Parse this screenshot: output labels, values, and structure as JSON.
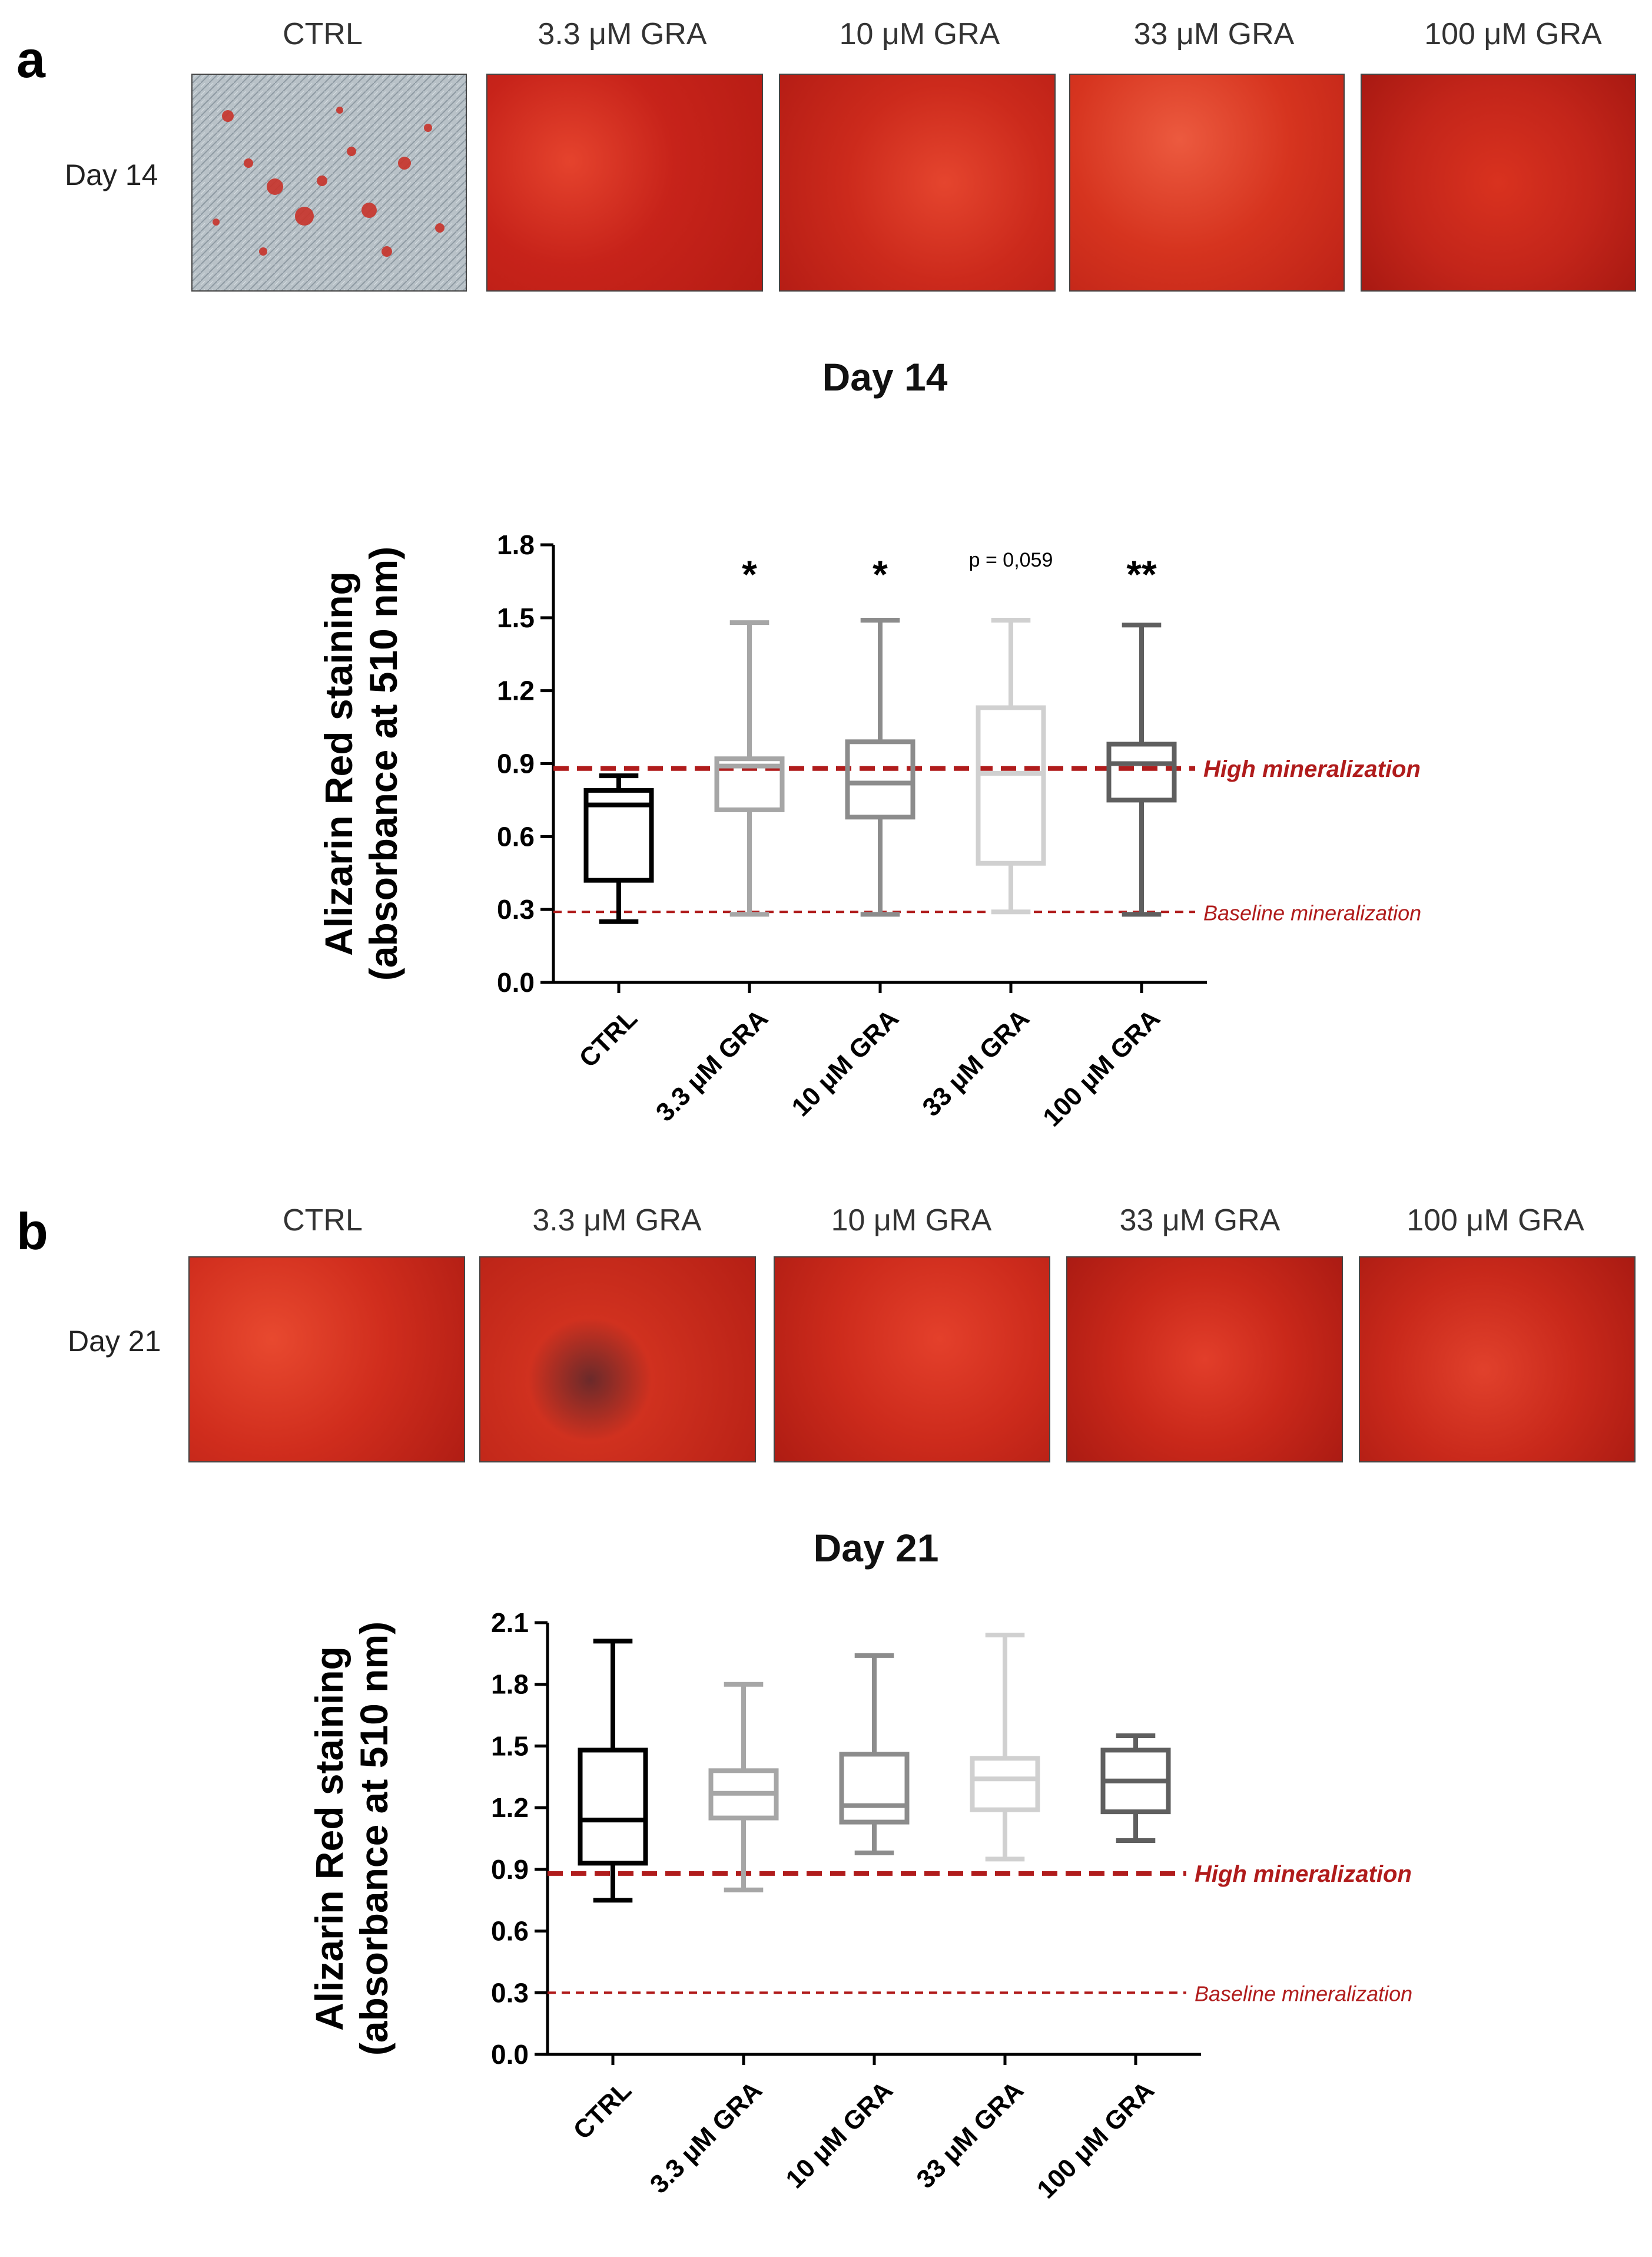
{
  "panel_a": {
    "letter": "a",
    "day_label": "Day 14",
    "images": [
      {
        "label": "CTRL",
        "staining": "sparse"
      },
      {
        "label": "3.3 μM GRA",
        "staining": "dense"
      },
      {
        "label": "10 μM GRA",
        "staining": "dense"
      },
      {
        "label": "33 μM GRA",
        "staining": "dense"
      },
      {
        "label": "100 μM GRA",
        "staining": "dense"
      }
    ]
  },
  "panel_b": {
    "letter": "b",
    "day_label": "Day 21",
    "images": [
      {
        "label": "CTRL",
        "staining": "dense"
      },
      {
        "label": "3.3 μM GRA",
        "staining": "dense"
      },
      {
        "label": "10 μM GRA",
        "staining": "dense"
      },
      {
        "label": "33 μM GRA",
        "staining": "dense"
      },
      {
        "label": "100 μM GRA",
        "staining": "dense"
      }
    ]
  },
  "colors": {
    "series": [
      "#000000",
      "#a6a6a6",
      "#8c8c8c",
      "#d0d0d0",
      "#5f5f5f"
    ],
    "threshold": "#b01c1c"
  },
  "chart_data": [
    {
      "type": "box",
      "title": "Day 14",
      "ylabel_line1": "Alizarin Red staining",
      "ylabel_line2": "(absorbance at 510 nm)",
      "ylim": [
        0,
        1.8
      ],
      "yticks": [
        "0.0",
        "0.3",
        "0.6",
        "0.9",
        "1.2",
        "1.5",
        "1.8"
      ],
      "categories": [
        "CTRL",
        "3.3 μM GRA",
        "10  μM GRA",
        "33 μM GRA",
        "100 μM GRA"
      ],
      "series": [
        {
          "min": 0.25,
          "q1": 0.42,
          "median": 0.73,
          "q3": 0.79,
          "max": 0.85
        },
        {
          "min": 0.28,
          "q1": 0.71,
          "median": 0.89,
          "q3": 0.92,
          "max": 1.48
        },
        {
          "min": 0.28,
          "q1": 0.68,
          "median": 0.82,
          "q3": 0.99,
          "max": 1.49
        },
        {
          "min": 0.29,
          "q1": 0.49,
          "median": 0.86,
          "q3": 1.13,
          "max": 1.49
        },
        {
          "min": 0.28,
          "q1": 0.75,
          "median": 0.9,
          "q3": 0.98,
          "max": 1.47
        }
      ],
      "annotations": [
        "",
        "*",
        "*",
        "p = 0,059",
        "**"
      ],
      "thresholds": [
        {
          "label": "High mineralization",
          "value": 0.88,
          "style": "thick"
        },
        {
          "label": "Baseline mineralization",
          "value": 0.29,
          "style": "thin"
        }
      ]
    },
    {
      "type": "box",
      "title": "Day 21",
      "ylabel_line1": "Alizarin Red staining",
      "ylabel_line2": "(absorbance at 510 nm)",
      "ylim": [
        0,
        2.1
      ],
      "yticks": [
        "0.0",
        "0.3",
        "0.6",
        "0.9",
        "1.2",
        "1.5",
        "1.8",
        "2.1"
      ],
      "categories": [
        "CTRL",
        "3.3 μM GRA",
        "10  μM GRA",
        "33 μM GRA",
        "100 μM GRA"
      ],
      "series": [
        {
          "min": 0.75,
          "q1": 0.93,
          "median": 1.14,
          "q3": 1.48,
          "max": 2.01
        },
        {
          "min": 0.8,
          "q1": 1.15,
          "median": 1.27,
          "q3": 1.38,
          "max": 1.8
        },
        {
          "min": 0.98,
          "q1": 1.13,
          "median": 1.21,
          "q3": 1.46,
          "max": 1.94
        },
        {
          "min": 0.95,
          "q1": 1.19,
          "median": 1.34,
          "q3": 1.44,
          "max": 2.04
        },
        {
          "min": 1.04,
          "q1": 1.18,
          "median": 1.33,
          "q3": 1.48,
          "max": 1.55
        }
      ],
      "annotations": [
        "",
        "",
        "",
        "",
        ""
      ],
      "thresholds": [
        {
          "label": "High mineralization",
          "value": 0.88,
          "style": "thick"
        },
        {
          "label": "Baseline mineralization",
          "value": 0.3,
          "style": "thin"
        }
      ]
    }
  ]
}
